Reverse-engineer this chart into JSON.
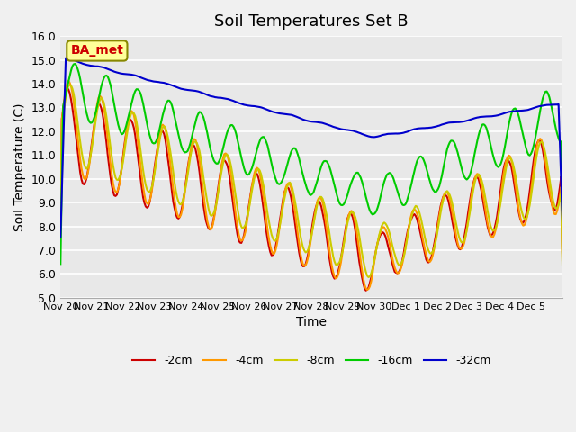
{
  "title": "Soil Temperatures Set B",
  "xlabel": "Time",
  "ylabel": "Soil Temperature (C)",
  "ylim": [
    5.0,
    16.0
  ],
  "yticks": [
    5.0,
    6.0,
    7.0,
    8.0,
    9.0,
    10.0,
    11.0,
    12.0,
    13.0,
    14.0,
    15.0,
    16.0
  ],
  "xtick_labels": [
    "Nov 20",
    "Nov 21",
    "Nov 22",
    "Nov 23",
    "Nov 24",
    "Nov 25",
    "Nov 26",
    "Nov 27",
    "Nov 28",
    "Nov 29",
    "Nov 30",
    "Dec 1",
    "Dec 2",
    "Dec 3",
    "Dec 4",
    "Dec 5",
    ""
  ],
  "legend_labels": [
    "-2cm",
    "-4cm",
    "-8cm",
    "-16cm",
    "-32cm"
  ],
  "colors": [
    "#cc0000",
    "#ff9900",
    "#cccc00",
    "#00cc00",
    "#0000cc"
  ],
  "annotation_text": "BA_met",
  "annotation_color": "#cc0000",
  "annotation_bg": "#ffff99",
  "title_fontsize": 13,
  "axis_fontsize": 10
}
